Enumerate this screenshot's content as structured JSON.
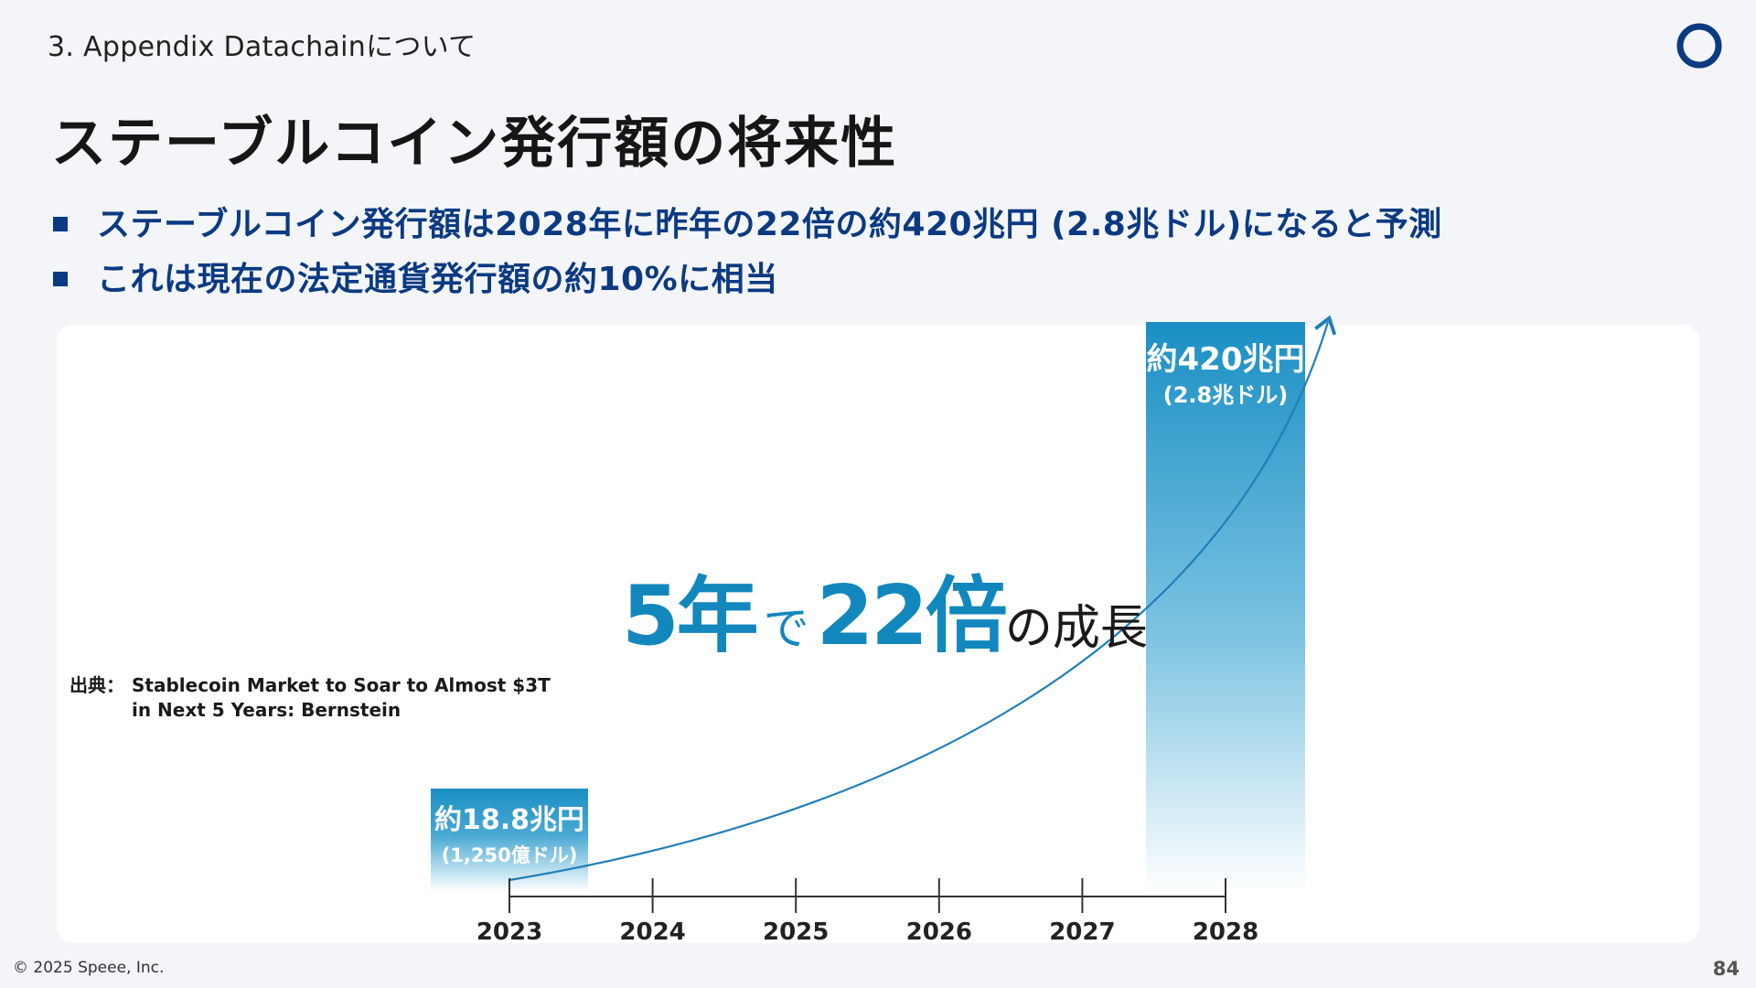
{
  "header": {
    "section": "3. Appendix Datachainについて",
    "title": "ステーブルコイン発行額の将来性"
  },
  "bullets": [
    "ステーブルコイン発行額は2028年に昨年の22倍の約420兆円 (2.8兆ドル)になると予測",
    "これは現在の法定通貨発行額の約10%に相当"
  ],
  "headline": {
    "part1": "5年",
    "part2": "で",
    "part3": "22倍",
    "part4": "の成長"
  },
  "source": {
    "label": "出典：",
    "line1": "Stablecoin Market to Soar to Almost $3T",
    "line2": "in Next 5 Years: Bernstein"
  },
  "chart_data": {
    "type": "bar",
    "categories": [
      "2023",
      "2024",
      "2025",
      "2026",
      "2027",
      "2028"
    ],
    "bars": [
      {
        "category": "2023",
        "value_trillion_usd": 0.125,
        "label": "約18.8兆円",
        "sublabel": "(1,250億ドル)"
      },
      {
        "category": "2028",
        "value_trillion_usd": 2.8,
        "label": "約420兆円",
        "sublabel": "(2.8兆ドル)"
      }
    ],
    "trend": "exponential growth curve from 2023 to 2028",
    "colors": {
      "bar": "#1a8fc4",
      "curve": "#1f7fb8",
      "axis": "#333333",
      "label": "#ffffff"
    }
  },
  "colors": {
    "accent": "#0b3a82",
    "highlight": "#1287bd"
  },
  "footer": {
    "copyright": "© 2025 Speee, Inc.",
    "page": "84"
  }
}
